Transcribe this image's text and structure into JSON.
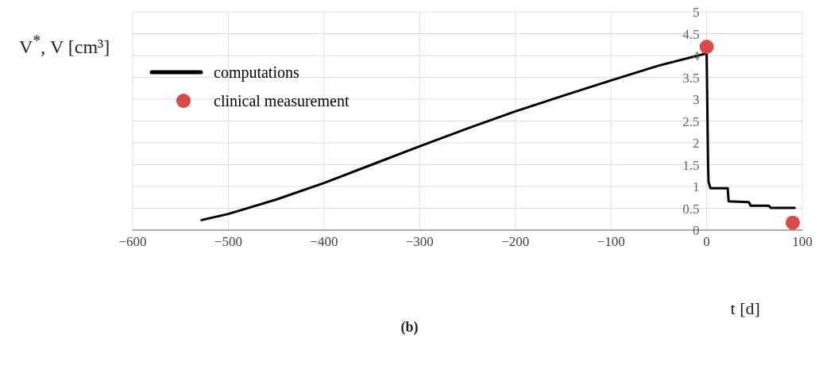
{
  "chart_data": {
    "type": "line",
    "xlabel": "t [d]",
    "ylabel": "V$^{*}$, V [cm³]",
    "annotations": [
      "(b)"
    ],
    "series": [
      {
        "name": "computations",
        "marker": "none",
        "color": "#000000",
        "x": [
          -528,
          -500,
          -450,
          -400,
          -350,
          -300,
          -250,
          -200,
          -150,
          -100,
          -50,
          0,
          1.5,
          2,
          4,
          22,
          23,
          44,
          46,
          65,
          67,
          92
        ],
        "values": [
          0.23,
          0.37,
          0.7,
          1.08,
          1.5,
          1.92,
          2.33,
          2.72,
          3.08,
          3.43,
          3.77,
          4.05,
          1.5,
          1.1,
          0.96,
          0.96,
          0.66,
          0.64,
          0.56,
          0.56,
          0.51,
          0.51
        ]
      },
      {
        "name": "clinical measurement",
        "type": "scatter",
        "marker": "circle",
        "color": "#d94a4a",
        "x": [
          0,
          90
        ],
        "values": [
          4.2,
          0.17
        ]
      }
    ],
    "xlim": [
      -600,
      100
    ],
    "xticks": [
      {
        "value": -600,
        "label": "−600"
      },
      {
        "value": -500,
        "label": "−500"
      },
      {
        "value": -400,
        "label": "−400"
      },
      {
        "value": -300,
        "label": "−300"
      },
      {
        "value": -200,
        "label": "−200"
      },
      {
        "value": -100,
        "label": "−100"
      },
      0,
      100
    ],
    "ylim": [
      0,
      5
    ],
    "yticks": [
      0,
      0.5,
      1,
      1.5,
      2,
      2.5,
      3,
      3.5,
      4,
      4.5,
      5
    ],
    "grid": true,
    "legend": "top left",
    "line_style": "solid"
  }
}
